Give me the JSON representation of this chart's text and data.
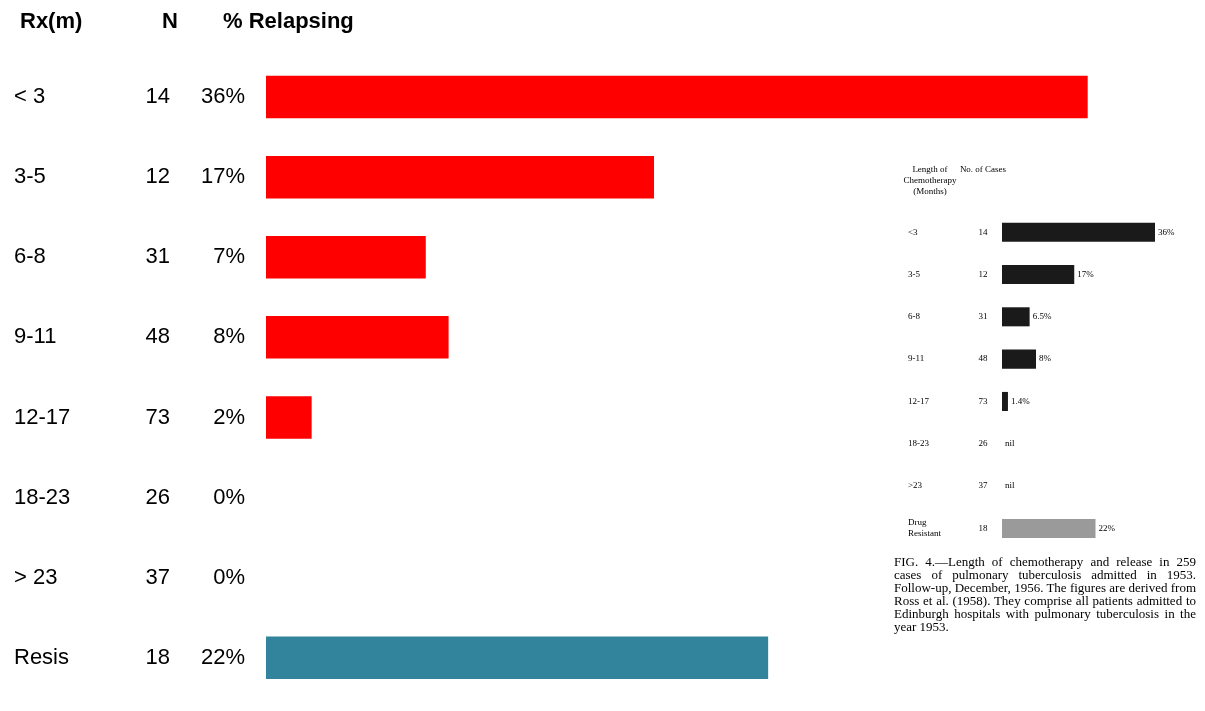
{
  "chart_data": [
    {
      "type": "bar",
      "orientation": "horizontal",
      "ylabel": "Rx(m)",
      "categories": [
        "< 3",
        "3-5",
        "6-8",
        "9-11",
        "12-17",
        "18-23",
        "> 23",
        "Resis"
      ],
      "values": [
        36,
        17,
        7,
        8,
        2,
        0,
        0,
        22
      ],
      "colors": [
        "#ff0000",
        "#ff0000",
        "#ff0000",
        "#ff0000",
        "#ff0000",
        "#ff0000",
        "#ff0000",
        "#31849b"
      ],
      "value_labels": [
        "36%",
        "17%",
        "7%",
        "8%",
        "2%",
        "0%",
        "0%",
        "22%"
      ],
      "annotations": [
        "N",
        "% Relapsing",
        "14",
        "12",
        "31",
        "48",
        "73",
        "26",
        "37",
        "18"
      ]
    },
    {
      "type": "bar",
      "orientation": "horizontal",
      "ylabel": "Length of Chemotherapy (Months)",
      "categories": [
        "<3",
        "3-5",
        "6-8",
        "9-11",
        "12-17",
        "18-23",
        ">23",
        "Drug Resistant"
      ],
      "values": [
        36,
        17,
        6.5,
        8,
        1.4,
        0,
        0,
        22
      ],
      "colors": [
        "#1a1a1a",
        "#1a1a1a",
        "#1a1a1a",
        "#1a1a1a",
        "#1a1a1a",
        "#1a1a1a",
        "#1a1a1a",
        "#9a9a9a"
      ],
      "value_labels": [
        "36%",
        "17%",
        "6.5%",
        "8%",
        "1.4%",
        "nil",
        "nil",
        "22%"
      ],
      "annotations": [
        "No. of Cases",
        "FIG. 4.—Length of chemotherapy and release in 259 cases of pulmonary tuberculosis admitted in 1953. Follow-up, December, 1956. The figures are derived from Ross et al. (1958). They comprise all patients admitted to Edinburgh hospitals with pulmonary tuberculosis in the year 1953.",
        "14",
        "12",
        "31",
        "48",
        "73",
        "26",
        "37",
        "18"
      ]
    }
  ]
}
